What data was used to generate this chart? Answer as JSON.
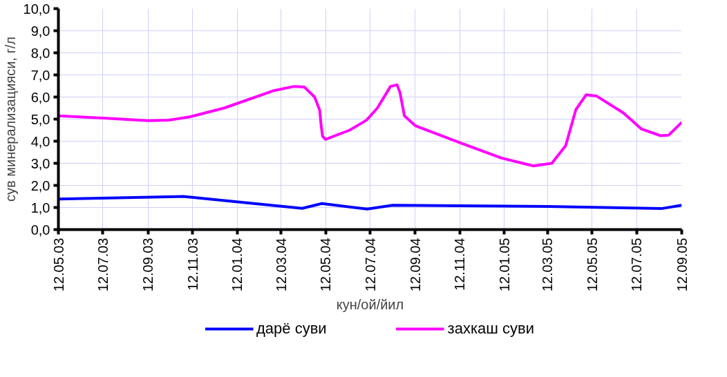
{
  "chart_data": {
    "type": "line",
    "xlabel": "кун/ой/йил",
    "ylabel": "сув минерализацияси, г/л",
    "xlim": [
      "2003-05-12",
      "2005-09-12"
    ],
    "xticks": [
      {
        "value": "2003-05-12",
        "label": "12.05.03"
      },
      {
        "value": "2003-07-12",
        "label": "12.07.03"
      },
      {
        "value": "2003-09-12",
        "label": "12.09.03"
      },
      {
        "value": "2003-11-12",
        "label": "12.11.03"
      },
      {
        "value": "2004-01-12",
        "label": "12.01.04"
      },
      {
        "value": "2004-03-12",
        "label": "12.03.04"
      },
      {
        "value": "2004-05-12",
        "label": "12.05.04"
      },
      {
        "value": "2004-07-12",
        "label": "12.07.04"
      },
      {
        "value": "2004-09-12",
        "label": "12.09.04"
      },
      {
        "value": "2004-11-12",
        "label": "12.11.04"
      },
      {
        "value": "2005-01-12",
        "label": "12.01.05"
      },
      {
        "value": "2005-03-12",
        "label": "12.03.05"
      },
      {
        "value": "2005-05-12",
        "label": "12.05.05"
      },
      {
        "value": "2005-07-12",
        "label": "12.07.05"
      },
      {
        "value": "2005-09-12",
        "label": "12.09.05"
      }
    ],
    "ylim": [
      0,
      10
    ],
    "yticks": [
      {
        "value": 0,
        "label": "0,0"
      },
      {
        "value": 1,
        "label": "1,0"
      },
      {
        "value": 2,
        "label": "2,0"
      },
      {
        "value": 3,
        "label": "3,0"
      },
      {
        "value": 4,
        "label": "4,0"
      },
      {
        "value": 5,
        "label": "5,0"
      },
      {
        "value": 6,
        "label": "6,0"
      },
      {
        "value": 7,
        "label": "7,0"
      },
      {
        "value": 8,
        "label": "8,0"
      },
      {
        "value": 9,
        "label": "9,0"
      },
      {
        "value": 10,
        "label": "10,0"
      }
    ],
    "grid": true,
    "legend": "bottom",
    "marker": "none",
    "line_style": "solid",
    "series": [
      {
        "name": "дарё суви",
        "color": "#0000ff",
        "x": [
          "2003-05-12",
          "2003-10-30",
          "2004-04-10",
          "2004-05-07",
          "2004-07-08",
          "2004-08-12",
          "2005-03-12",
          "2005-08-15",
          "2005-09-12"
        ],
        "values": [
          1.38,
          1.5,
          0.96,
          1.18,
          0.93,
          1.1,
          1.05,
          0.95,
          1.1
        ]
      },
      {
        "name": "захкаш суви",
        "color": "#ff00ff",
        "x": [
          "2003-05-12",
          "2003-07-12",
          "2003-09-12",
          "2003-10-10",
          "2003-11-08",
          "2003-12-25",
          "2004-03-01",
          "2004-03-30",
          "2004-04-13",
          "2004-04-27",
          "2004-05-04",
          "2004-05-06",
          "2004-05-08",
          "2004-05-12",
          "2004-06-14",
          "2004-07-07",
          "2004-07-22",
          "2004-08-09",
          "2004-08-18",
          "2004-08-22",
          "2004-08-28",
          "2004-09-12",
          "2004-11-12",
          "2005-01-08",
          "2005-02-21",
          "2005-03-18",
          "2005-04-06",
          "2005-04-20",
          "2005-05-04",
          "2005-05-18",
          "2005-06-24",
          "2005-07-19",
          "2005-08-14",
          "2005-08-25",
          "2005-09-12"
        ],
        "values": [
          5.15,
          5.05,
          4.93,
          4.95,
          5.1,
          5.5,
          6.28,
          6.48,
          6.45,
          6.0,
          5.4,
          4.7,
          4.22,
          4.08,
          4.5,
          4.95,
          5.5,
          6.48,
          6.55,
          6.2,
          5.15,
          4.7,
          3.93,
          3.24,
          2.88,
          3.0,
          3.8,
          5.43,
          6.1,
          6.05,
          5.28,
          4.55,
          4.25,
          4.27,
          4.85
        ]
      }
    ]
  }
}
